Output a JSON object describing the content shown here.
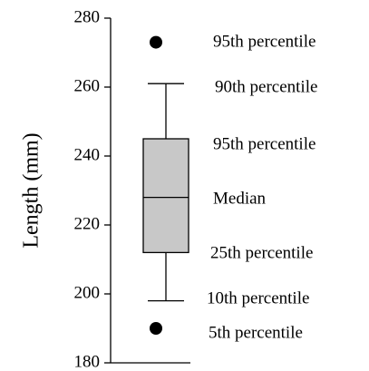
{
  "chart_data": {
    "type": "box",
    "ylabel": "Length (mm)",
    "ylim": [
      180,
      280
    ],
    "yticks": [
      180,
      200,
      220,
      240,
      260,
      280
    ],
    "color": "#c8c8c8",
    "box": {
      "whisker_low": 198,
      "q1": 212,
      "median": 228,
      "q3": 245,
      "whisker_high": 261,
      "outliers": [
        190,
        273
      ]
    },
    "annotations": [
      "95th percentile",
      "90th percentile",
      "95th percentile",
      "Median",
      "25th percentile",
      "10th percentile",
      "5th percentile"
    ]
  }
}
